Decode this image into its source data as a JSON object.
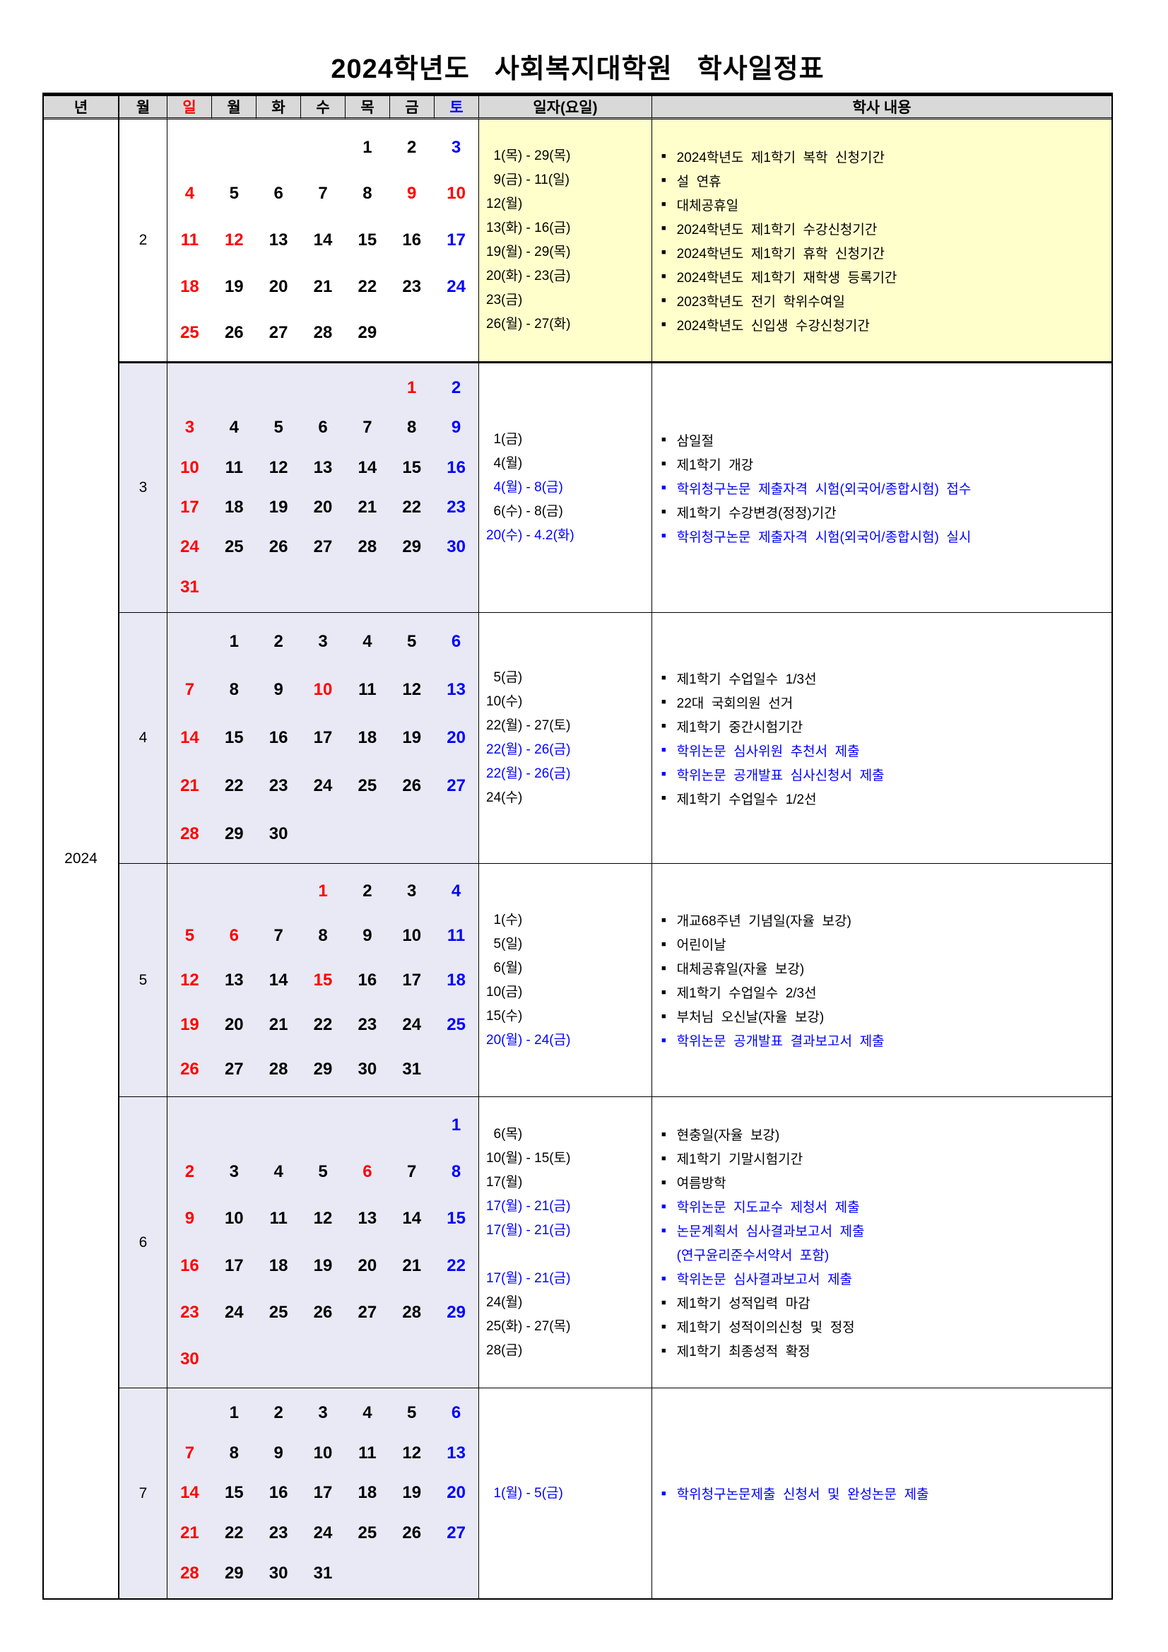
{
  "title": "2024학년도  사회복지대학원  학사일정표",
  "colors": {
    "red": "#FF0000",
    "blue": "#0000FF",
    "black": "#000000",
    "header_bg": "#D9D9D9",
    "feb_panel_bg": "#FFFFCC",
    "calendar_bg": "#E8E9F4"
  },
  "header": {
    "year": "년",
    "month": "월",
    "days": [
      "일",
      "월",
      "화",
      "수",
      "목",
      "금",
      "토"
    ],
    "date_col": "일자(요일)",
    "content_col": "학사 내용"
  },
  "year_label": "2024",
  "months": [
    {
      "label": "2",
      "style": "feb",
      "weeks": [
        [
          0,
          0,
          0,
          0,
          [
            1,
            "k"
          ],
          [
            2,
            "k"
          ],
          [
            3,
            "b"
          ]
        ],
        [
          [
            4,
            "r"
          ],
          [
            5,
            "k"
          ],
          [
            6,
            "k"
          ],
          [
            7,
            "k"
          ],
          [
            8,
            "k"
          ],
          [
            9,
            "r"
          ],
          [
            10,
            "r"
          ]
        ],
        [
          [
            11,
            "r"
          ],
          [
            12,
            "r"
          ],
          [
            13,
            "k"
          ],
          [
            14,
            "k"
          ],
          [
            15,
            "k"
          ],
          [
            16,
            "k"
          ],
          [
            17,
            "b"
          ]
        ],
        [
          [
            18,
            "r"
          ],
          [
            19,
            "k"
          ],
          [
            20,
            "k"
          ],
          [
            21,
            "k"
          ],
          [
            22,
            "k"
          ],
          [
            23,
            "k"
          ],
          [
            24,
            "b"
          ]
        ],
        [
          [
            25,
            "r"
          ],
          [
            26,
            "k"
          ],
          [
            27,
            "k"
          ],
          [
            28,
            "k"
          ],
          [
            29,
            "k"
          ],
          0,
          0
        ]
      ],
      "events": [
        {
          "d": "  1(목) - 29(목)",
          "t": "2024학년도  제1학기  복학  신청기간",
          "c": "k"
        },
        {
          "d": "  9(금) - 11(일)",
          "t": "설  연휴",
          "c": "k"
        },
        {
          "d": "12(월)",
          "t": "대체공휴일",
          "c": "k"
        },
        {
          "d": "13(화) - 16(금)",
          "t": "2024학년도  제1학기  수강신청기간",
          "c": "k"
        },
        {
          "d": "19(월) - 29(목)",
          "t": "2024학년도  제1학기  휴학  신청기간",
          "c": "k"
        },
        {
          "d": "20(화) - 23(금)",
          "t": "2024학년도  제1학기  재학생  등록기간",
          "c": "k"
        },
        {
          "d": "23(금)",
          "t": "2023학년도  전기  학위수여일",
          "c": "k"
        },
        {
          "d": "26(월) - 27(화)",
          "t": "2024학년도  신입생  수강신청기간",
          "c": "k"
        }
      ]
    },
    {
      "label": "3",
      "style": "norm",
      "weeks": [
        [
          0,
          0,
          0,
          0,
          0,
          [
            1,
            "r"
          ],
          [
            2,
            "b"
          ]
        ],
        [
          [
            3,
            "r"
          ],
          [
            4,
            "k"
          ],
          [
            5,
            "k"
          ],
          [
            6,
            "k"
          ],
          [
            7,
            "k"
          ],
          [
            8,
            "k"
          ],
          [
            9,
            "b"
          ]
        ],
        [
          [
            10,
            "r"
          ],
          [
            11,
            "k"
          ],
          [
            12,
            "k"
          ],
          [
            13,
            "k"
          ],
          [
            14,
            "k"
          ],
          [
            15,
            "k"
          ],
          [
            16,
            "b"
          ]
        ],
        [
          [
            17,
            "r"
          ],
          [
            18,
            "k"
          ],
          [
            19,
            "k"
          ],
          [
            20,
            "k"
          ],
          [
            21,
            "k"
          ],
          [
            22,
            "k"
          ],
          [
            23,
            "b"
          ]
        ],
        [
          [
            24,
            "r"
          ],
          [
            25,
            "k"
          ],
          [
            26,
            "k"
          ],
          [
            27,
            "k"
          ],
          [
            28,
            "k"
          ],
          [
            29,
            "k"
          ],
          [
            30,
            "b"
          ]
        ],
        [
          [
            31,
            "r"
          ],
          0,
          0,
          0,
          0,
          0,
          0
        ]
      ],
      "events": [
        {
          "d": "  1(금)",
          "t": "삼일절",
          "c": "k"
        },
        {
          "d": "  4(월)",
          "t": "제1학기  개강",
          "c": "k"
        },
        {
          "d": "  4(월) - 8(금)",
          "t": "학위청구논문  제출자격  시험(외국어/종합시험)  접수",
          "c": "b"
        },
        {
          "d": "  6(수) - 8(금)",
          "t": "제1학기  수강변경(정정)기간",
          "c": "k"
        },
        {
          "d": "20(수) - 4.2(화)",
          "t": "학위청구논문  제출자격  시험(외국어/종합시험)  실시",
          "c": "b"
        }
      ]
    },
    {
      "label": "4",
      "style": "norm",
      "weeks": [
        [
          0,
          [
            1,
            "k"
          ],
          [
            2,
            "k"
          ],
          [
            3,
            "k"
          ],
          [
            4,
            "k"
          ],
          [
            5,
            "k"
          ],
          [
            6,
            "b"
          ]
        ],
        [
          [
            7,
            "r"
          ],
          [
            8,
            "k"
          ],
          [
            9,
            "k"
          ],
          [
            10,
            "r"
          ],
          [
            11,
            "k"
          ],
          [
            12,
            "k"
          ],
          [
            13,
            "b"
          ]
        ],
        [
          [
            14,
            "r"
          ],
          [
            15,
            "k"
          ],
          [
            16,
            "k"
          ],
          [
            17,
            "k"
          ],
          [
            18,
            "k"
          ],
          [
            19,
            "k"
          ],
          [
            20,
            "b"
          ]
        ],
        [
          [
            21,
            "r"
          ],
          [
            22,
            "k"
          ],
          [
            23,
            "k"
          ],
          [
            24,
            "k"
          ],
          [
            25,
            "k"
          ],
          [
            26,
            "k"
          ],
          [
            27,
            "b"
          ]
        ],
        [
          [
            28,
            "r"
          ],
          [
            29,
            "k"
          ],
          [
            30,
            "k"
          ],
          0,
          0,
          0,
          0
        ]
      ],
      "events": [
        {
          "d": "  5(금)",
          "t": "제1학기  수업일수  1/3선",
          "c": "k"
        },
        {
          "d": "10(수)",
          "t": "22대  국회의원  선거",
          "c": "k"
        },
        {
          "d": "22(월) - 27(토)",
          "t": "제1학기  중간시험기간",
          "c": "k"
        },
        {
          "d": "22(월) - 26(금)",
          "t": "학위논문  심사위원  추천서  제출",
          "c": "b"
        },
        {
          "d": "22(월) - 26(금)",
          "t": "학위논문  공개발표  심사신청서  제출",
          "c": "b"
        },
        {
          "d": "24(수)",
          "t": "제1학기  수업일수  1/2선",
          "c": "k"
        }
      ]
    },
    {
      "label": "5",
      "style": "norm",
      "weeks": [
        [
          0,
          0,
          0,
          [
            1,
            "r"
          ],
          [
            2,
            "k"
          ],
          [
            3,
            "k"
          ],
          [
            4,
            "b"
          ]
        ],
        [
          [
            5,
            "r"
          ],
          [
            6,
            "r"
          ],
          [
            7,
            "k"
          ],
          [
            8,
            "k"
          ],
          [
            9,
            "k"
          ],
          [
            10,
            "k"
          ],
          [
            11,
            "b"
          ]
        ],
        [
          [
            12,
            "r"
          ],
          [
            13,
            "k"
          ],
          [
            14,
            "k"
          ],
          [
            15,
            "r"
          ],
          [
            16,
            "k"
          ],
          [
            17,
            "k"
          ],
          [
            18,
            "b"
          ]
        ],
        [
          [
            19,
            "r"
          ],
          [
            20,
            "k"
          ],
          [
            21,
            "k"
          ],
          [
            22,
            "k"
          ],
          [
            23,
            "k"
          ],
          [
            24,
            "k"
          ],
          [
            25,
            "b"
          ]
        ],
        [
          [
            26,
            "r"
          ],
          [
            27,
            "k"
          ],
          [
            28,
            "k"
          ],
          [
            29,
            "k"
          ],
          [
            30,
            "k"
          ],
          [
            31,
            "k"
          ],
          0
        ]
      ],
      "events": [
        {
          "d": "  1(수)",
          "t": "개교68주년  기념일(자율  보강)",
          "c": "k"
        },
        {
          "d": "  5(일)",
          "t": "어린이날",
          "c": "k"
        },
        {
          "d": "  6(월)",
          "t": "대체공휴일(자율  보강)",
          "c": "k"
        },
        {
          "d": "10(금)",
          "t": "제1학기  수업일수  2/3선",
          "c": "k"
        },
        {
          "d": "15(수)",
          "t": "부처님  오신날(자율  보강)",
          "c": "k"
        },
        {
          "d": "20(월) - 24(금)",
          "t": "학위논문  공개발표  결과보고서  제출",
          "c": "b"
        }
      ]
    },
    {
      "label": "6",
      "style": "norm",
      "weeks": [
        [
          0,
          0,
          0,
          0,
          0,
          0,
          [
            1,
            "b"
          ]
        ],
        [
          [
            2,
            "r"
          ],
          [
            3,
            "k"
          ],
          [
            4,
            "k"
          ],
          [
            5,
            "k"
          ],
          [
            6,
            "r"
          ],
          [
            7,
            "k"
          ],
          [
            8,
            "b"
          ]
        ],
        [
          [
            9,
            "r"
          ],
          [
            10,
            "k"
          ],
          [
            11,
            "k"
          ],
          [
            12,
            "k"
          ],
          [
            13,
            "k"
          ],
          [
            14,
            "k"
          ],
          [
            15,
            "b"
          ]
        ],
        [
          [
            16,
            "r"
          ],
          [
            17,
            "k"
          ],
          [
            18,
            "k"
          ],
          [
            19,
            "k"
          ],
          [
            20,
            "k"
          ],
          [
            21,
            "k"
          ],
          [
            22,
            "b"
          ]
        ],
        [
          [
            23,
            "r"
          ],
          [
            24,
            "k"
          ],
          [
            25,
            "k"
          ],
          [
            26,
            "k"
          ],
          [
            27,
            "k"
          ],
          [
            28,
            "k"
          ],
          [
            29,
            "b"
          ]
        ],
        [
          [
            30,
            "r"
          ],
          0,
          0,
          0,
          0,
          0,
          0
        ]
      ],
      "events": [
        {
          "d": "  6(목)",
          "t": "현충일(자율  보강)",
          "c": "k"
        },
        {
          "d": "10(월) - 15(토)",
          "t": "제1학기  기말시험기간",
          "c": "k"
        },
        {
          "d": "17(월)",
          "t": "여름방학",
          "c": "k"
        },
        {
          "d": "17(월) - 21(금)",
          "t": "학위논문  지도교수  제청서  제출",
          "c": "b"
        },
        {
          "d": "17(월) - 21(금)",
          "t": "논문계획서  심사결과보고서  제출",
          "c": "b"
        },
        {
          "d": "",
          "t": "(연구윤리준수서약서  포함)",
          "c": "b",
          "cont": true
        },
        {
          "d": "17(월) - 21(금)",
          "t": "학위논문  심사결과보고서  제출",
          "c": "b"
        },
        {
          "d": "24(월)",
          "t": "제1학기  성적입력  마감",
          "c": "k"
        },
        {
          "d": "25(화) - 27(목)",
          "t": "제1학기  성적이의신청  및  정정",
          "c": "k"
        },
        {
          "d": "28(금)",
          "t": "제1학기  최종성적  확정",
          "c": "k"
        }
      ]
    },
    {
      "label": "7",
      "style": "norm",
      "weeks": [
        [
          0,
          [
            1,
            "k"
          ],
          [
            2,
            "k"
          ],
          [
            3,
            "k"
          ],
          [
            4,
            "k"
          ],
          [
            5,
            "k"
          ],
          [
            6,
            "b"
          ]
        ],
        [
          [
            7,
            "r"
          ],
          [
            8,
            "k"
          ],
          [
            9,
            "k"
          ],
          [
            10,
            "k"
          ],
          [
            11,
            "k"
          ],
          [
            12,
            "k"
          ],
          [
            13,
            "b"
          ]
        ],
        [
          [
            14,
            "r"
          ],
          [
            15,
            "k"
          ],
          [
            16,
            "k"
          ],
          [
            17,
            "k"
          ],
          [
            18,
            "k"
          ],
          [
            19,
            "k"
          ],
          [
            20,
            "b"
          ]
        ],
        [
          [
            21,
            "r"
          ],
          [
            22,
            "k"
          ],
          [
            23,
            "k"
          ],
          [
            24,
            "k"
          ],
          [
            25,
            "k"
          ],
          [
            26,
            "k"
          ],
          [
            27,
            "b"
          ]
        ],
        [
          [
            28,
            "r"
          ],
          [
            29,
            "k"
          ],
          [
            30,
            "k"
          ],
          [
            31,
            "k"
          ],
          0,
          0,
          0
        ]
      ],
      "events": [
        {
          "d": "  1(월) - 5(금)",
          "t": "학위청구논문제출  신청서  및  완성논문  제출",
          "c": "b"
        }
      ]
    }
  ]
}
